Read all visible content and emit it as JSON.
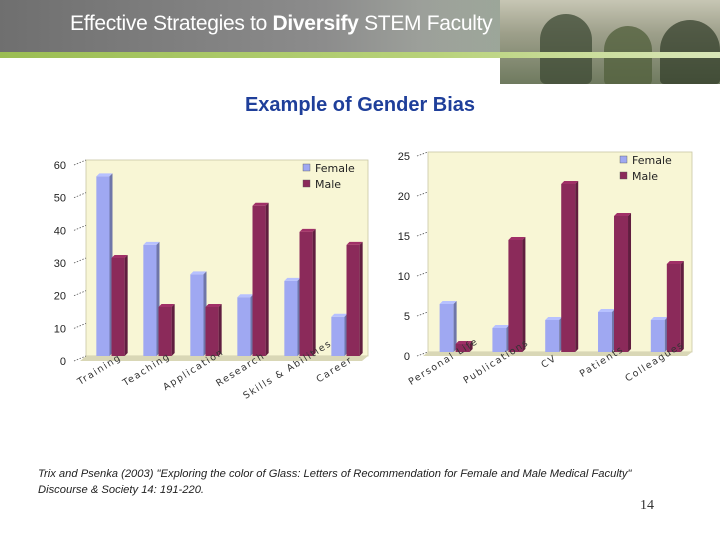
{
  "header": {
    "title_prefix": "Effective Strategies to ",
    "title_bold": "Diversify",
    "title_suffix": " STEM Faculty"
  },
  "slide": {
    "title": "Example of Gender Bias",
    "citation_line1": "Trix and Psenka (2003) \"Exploring  the color of Glass: Letters of Recommendation for Female and Male Medical Faculty\"",
    "citation_line2": "Discourse & Society 14: 191-220.",
    "page_number": "14"
  },
  "colors": {
    "female": "#9fa8f2",
    "male": "#8b2a5a",
    "plot_bg": "#f8f6d5",
    "title": "#1f3f9a"
  },
  "chart_data": [
    {
      "type": "bar",
      "categories": [
        "Training",
        "Teaching",
        "Application",
        "Research",
        "Skills & Abilities",
        "Career"
      ],
      "series": [
        {
          "name": "Female",
          "values": [
            55,
            34,
            25,
            18,
            23,
            12
          ]
        },
        {
          "name": "Male",
          "values": [
            30,
            15,
            15,
            46,
            38,
            34
          ]
        }
      ],
      "ylim": [
        0,
        60
      ],
      "yticks": [
        "0",
        "10",
        "20",
        "30",
        "40",
        "50",
        "60"
      ],
      "legend": "top-right"
    },
    {
      "type": "bar",
      "categories": [
        "Personal Life",
        "Publications",
        "CV",
        "Patients",
        "Colleagues"
      ],
      "series": [
        {
          "name": "Female",
          "values": [
            6,
            3,
            4,
            5,
            4
          ]
        },
        {
          "name": "Male",
          "values": [
            1,
            14,
            21,
            17,
            11
          ]
        }
      ],
      "ylim": [
        0,
        25
      ],
      "yticks": [
        "0",
        "5",
        "10",
        "15",
        "20",
        "25"
      ],
      "legend": "top-right"
    }
  ]
}
